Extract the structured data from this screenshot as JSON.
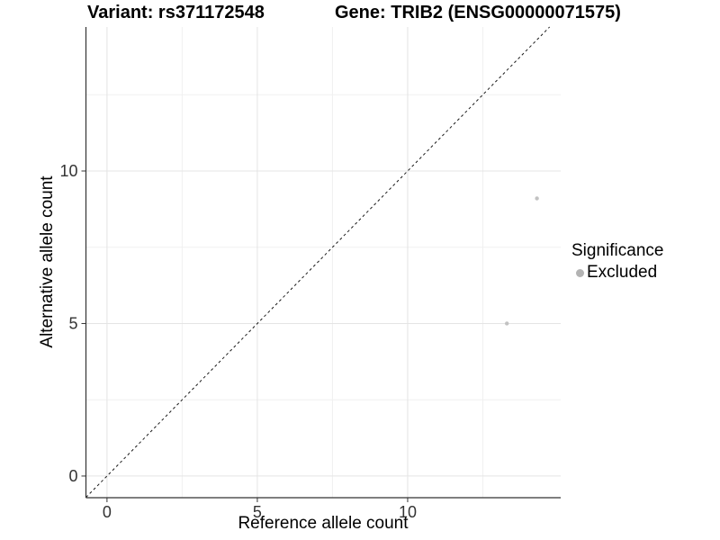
{
  "header": {
    "variant_title": "Variant: rs371172548",
    "gene_title": "Gene: TRIB2 (ENSG00000071575)"
  },
  "colors": {
    "background": "#ffffff",
    "grid_major": "#e4e4e4",
    "grid_minor": "#f0f0f0",
    "axis": "#333333",
    "tick_label": "#333333",
    "identity_line": "#1a1a1a",
    "point": "#c2c2c2",
    "legend_dot": "#b3b3b3"
  },
  "chart_data": {
    "type": "scatter",
    "title_left": "Variant: rs371172548",
    "title_right": "Gene: TRIB2 (ENSG00000071575)",
    "xlabel": "Reference allele count",
    "ylabel": "Alternative allele count",
    "x_ticks": [
      0,
      5,
      10
    ],
    "y_ticks": [
      0,
      5,
      10
    ],
    "xlim": [
      -0.7,
      15.09
    ],
    "ylim": [
      -0.71,
      14.72
    ],
    "grid": true,
    "identity_line": true,
    "identity_line_style": "dashed",
    "series": [
      {
        "name": "Excluded",
        "color": "#c2c2c2",
        "points": [
          {
            "x": 13.3,
            "y": 5.0
          },
          {
            "x": 14.3,
            "y": 9.1
          }
        ]
      }
    ],
    "legend": {
      "title": "Significance",
      "position": "right",
      "items": [
        {
          "label": "Excluded",
          "color": "#b3b3b3"
        }
      ]
    }
  }
}
